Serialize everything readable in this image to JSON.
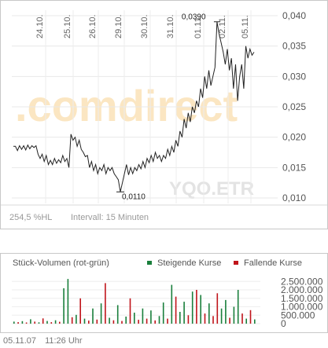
{
  "chart_data": [
    {
      "type": "line",
      "y_ticks": [
        "0,040",
        "0,035",
        "0,030",
        "0,025",
        "0,020",
        "0,015",
        "0,010"
      ],
      "ylim": [
        0.01,
        0.04
      ],
      "date_labels": [
        "24.10.",
        "25.10.",
        "26.10.",
        "29.10.",
        "30.10.",
        "31.10.",
        "01.11.",
        "02.11.",
        "05.11."
      ],
      "annotations": {
        "high": "0,0390",
        "low": "0,0110"
      },
      "watermark": ".comdirect",
      "symbol_watermark": "YQO.ETR",
      "performance": "254,5 %HL",
      "interval": "Intervall: 15 Minuten",
      "series": [
        {
          "color": "#222222",
          "values": [
            0.0185,
            0.0185,
            0.0178,
            0.0186,
            0.018,
            0.0186,
            0.0179,
            0.0187,
            0.0181,
            0.0186,
            0.0183,
            0.0186,
            0.0172,
            0.0165,
            0.0172,
            0.016,
            0.017,
            0.0155,
            0.0162,
            0.0155,
            0.0165,
            0.0157,
            0.0163,
            0.0158,
            0.017,
            0.016,
            0.0165,
            0.015,
            0.0205,
            0.0195,
            0.02,
            0.0185,
            0.0195,
            0.018,
            0.0175,
            0.0168,
            0.017,
            0.015,
            0.016,
            0.0145,
            0.0155,
            0.014,
            0.015,
            0.0145,
            0.0155,
            0.014,
            0.015,
            0.0145,
            0.015,
            0.014,
            0.0135,
            0.013,
            0.011,
            0.0125,
            0.014,
            0.0155,
            0.0138,
            0.015,
            0.014,
            0.015,
            0.0145,
            0.0155,
            0.0148,
            0.016,
            0.015,
            0.0165,
            0.0158,
            0.017,
            0.016,
            0.0175,
            0.0165,
            0.017,
            0.016,
            0.017,
            0.0165,
            0.018,
            0.017,
            0.0185,
            0.0175,
            0.0195,
            0.0185,
            0.021,
            0.02,
            0.023,
            0.0215,
            0.024,
            0.0225,
            0.025,
            0.024,
            0.026,
            0.025,
            0.028,
            0.0265,
            0.03,
            0.028,
            0.031,
            0.0285,
            0.03,
            0.0315,
            0.039,
            0.037,
            0.0355,
            0.034,
            0.032,
            0.0345,
            0.031,
            0.033,
            0.028,
            0.032,
            0.026,
            0.03,
            0.032,
            0.028,
            0.035,
            0.033,
            0.0345,
            0.0335,
            0.034
          ]
        }
      ]
    },
    {
      "type": "bar",
      "title": "Stück-Volumen (rot-grün)",
      "legend": [
        {
          "name": "Steigende Kurse",
          "color": "#1a7f3c"
        },
        {
          "name": "Fallende Kurse",
          "color": "#c0151b"
        }
      ],
      "y_ticks": [
        "2.500.000",
        "2.000.000",
        "1.500.000",
        "1.000.000",
        "500.000",
        "0"
      ],
      "ylim": [
        0,
        2700000
      ],
      "bars": [
        {
          "v": 120000,
          "c": "g"
        },
        {
          "v": 90000,
          "c": "r"
        },
        {
          "v": 150000,
          "c": "g"
        },
        {
          "v": 70000,
          "c": "r"
        },
        {
          "v": 260000,
          "c": "g"
        },
        {
          "v": 120000,
          "c": "r"
        },
        {
          "v": 80000,
          "c": "g"
        },
        {
          "v": 310000,
          "c": "r"
        },
        {
          "v": 160000,
          "c": "g"
        },
        {
          "v": 90000,
          "c": "r"
        },
        {
          "v": 200000,
          "c": "g"
        },
        {
          "v": 110000,
          "c": "r"
        },
        {
          "v": 2100000,
          "c": "g"
        },
        {
          "v": 2650000,
          "c": "g"
        },
        {
          "v": 380000,
          "c": "r"
        },
        {
          "v": 520000,
          "c": "g"
        },
        {
          "v": 1500000,
          "c": "r"
        },
        {
          "v": 300000,
          "c": "g"
        },
        {
          "v": 180000,
          "c": "r"
        },
        {
          "v": 900000,
          "c": "g"
        },
        {
          "v": 240000,
          "c": "r"
        },
        {
          "v": 1200000,
          "c": "g"
        },
        {
          "v": 2400000,
          "c": "r"
        },
        {
          "v": 350000,
          "c": "g"
        },
        {
          "v": 200000,
          "c": "r"
        },
        {
          "v": 1100000,
          "c": "g"
        },
        {
          "v": 160000,
          "c": "r"
        },
        {
          "v": 420000,
          "c": "g"
        },
        {
          "v": 1500000,
          "c": "r"
        },
        {
          "v": 650000,
          "c": "g"
        },
        {
          "v": 230000,
          "c": "r"
        },
        {
          "v": 900000,
          "c": "g"
        },
        {
          "v": 300000,
          "c": "r"
        },
        {
          "v": 780000,
          "c": "g"
        },
        {
          "v": 190000,
          "c": "r"
        },
        {
          "v": 450000,
          "c": "g"
        },
        {
          "v": 1250000,
          "c": "g"
        },
        {
          "v": 300000,
          "c": "r"
        },
        {
          "v": 2300000,
          "c": "g"
        },
        {
          "v": 1600000,
          "c": "r"
        },
        {
          "v": 700000,
          "c": "g"
        },
        {
          "v": 1300000,
          "c": "g"
        },
        {
          "v": 500000,
          "c": "r"
        },
        {
          "v": 1900000,
          "c": "g"
        },
        {
          "v": 2000000,
          "c": "r"
        },
        {
          "v": 1700000,
          "c": "g"
        },
        {
          "v": 600000,
          "c": "r"
        },
        {
          "v": 1200000,
          "c": "g"
        },
        {
          "v": 450000,
          "c": "r"
        },
        {
          "v": 1800000,
          "c": "r"
        },
        {
          "v": 900000,
          "c": "g"
        },
        {
          "v": 1400000,
          "c": "g"
        },
        {
          "v": 350000,
          "c": "r"
        },
        {
          "v": 1000000,
          "c": "g"
        },
        {
          "v": 2000000,
          "c": "g"
        },
        {
          "v": 600000,
          "c": "r"
        },
        {
          "v": 300000,
          "c": "g"
        },
        {
          "v": 800000,
          "c": "r"
        },
        {
          "v": 250000,
          "c": "g"
        }
      ]
    }
  ],
  "footer": {
    "date": "05.11.07",
    "time": "11:26 Uhr"
  }
}
